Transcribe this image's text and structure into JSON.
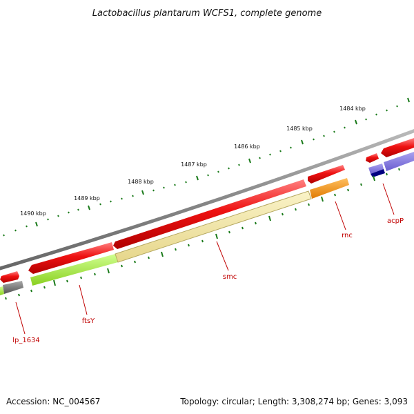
{
  "title": "Lactobacillus plantarum WCFS1, complete genome",
  "footer": {
    "accession": "Accession: NC_004567",
    "topology": "Topology: circular; Length: 3,308,274 bp; Genes: 3,093"
  },
  "kbp_labels": [
    "1484 kbp",
    "1485 kbp",
    "1486 kbp",
    "1487 kbp",
    "1488 kbp",
    "1489 kbp",
    "1490 kbp"
  ],
  "gene_labels": [
    "acpP",
    "rnc",
    "smc",
    "ftsY",
    "lp_1634"
  ],
  "colors": {
    "backbone": "#888888",
    "cds": "#ee1111",
    "ruler_tick": "#1a7a1a",
    "label": "#c00000",
    "smc": "#f0e6a0",
    "ftsY": "#a8f040",
    "rnc": "#f39212",
    "acpP_light": "#7b6fd8",
    "acpP_dark": "#000080",
    "lp_1634": "#6e6e6e"
  }
}
